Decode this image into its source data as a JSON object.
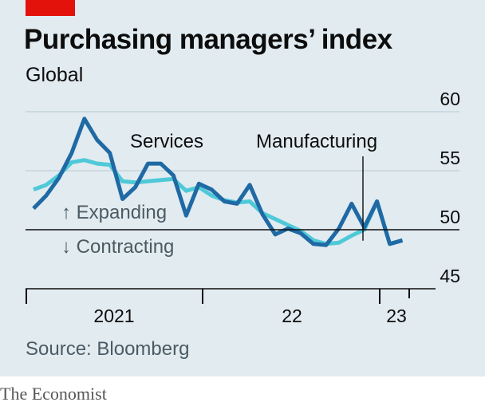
{
  "header": {
    "title": "Purchasing managers’ index",
    "subtitle": "Global"
  },
  "footer": {
    "source": "Source: Bloomberg",
    "brand": "The Economist"
  },
  "colors": {
    "accent": "#e3120b",
    "services": "#1f69a4",
    "manufacturing": "#4fc9d8",
    "background": "#e1ebf0"
  },
  "chart_data": {
    "type": "line",
    "title": "Purchasing managers’ index",
    "subtitle": "Global",
    "ylim": [
      45,
      60
    ],
    "yticks": [
      45,
      50,
      55,
      60
    ],
    "x_tick_labels": [
      "2021",
      "22",
      "23"
    ],
    "x_range": [
      "2020-09",
      "2023-02"
    ],
    "grid": true,
    "reference_line": 50,
    "annotations": {
      "expanding": "↑ Expanding",
      "contracting": "↓ Contracting"
    },
    "months": [
      "2020-09",
      "2020-10",
      "2020-11",
      "2020-12",
      "2021-01",
      "2021-02",
      "2021-03",
      "2021-04",
      "2021-05",
      "2021-06",
      "2021-07",
      "2021-08",
      "2021-09",
      "2021-10",
      "2021-11",
      "2021-12",
      "2022-01",
      "2022-02",
      "2022-03",
      "2022-04",
      "2022-05",
      "2022-06",
      "2022-07",
      "2022-08",
      "2022-09",
      "2022-10",
      "2022-11",
      "2022-12",
      "2023-01",
      "2023-02"
    ],
    "series": [
      {
        "name": "Services",
        "values": [
          51.8,
          52.9,
          54.4,
          56.5,
          59.4,
          57.6,
          56.5,
          52.6,
          53.6,
          55.6,
          55.6,
          54.6,
          51.2,
          53.9,
          53.4,
          52.4,
          52.2,
          53.8,
          51.3,
          49.6,
          50.1,
          49.7,
          48.8,
          48.7,
          50.1,
          52.2,
          50.2,
          52.4,
          48.8,
          49.1
        ]
      },
      {
        "name": "Manufacturing",
        "values": [
          53.4,
          53.8,
          54.6,
          55.7,
          55.9,
          55.6,
          55.5,
          54.1,
          54.0,
          54.1,
          54.2,
          54.3,
          53.3,
          53.6,
          52.9,
          52.5,
          52.3,
          52.4,
          51.4,
          50.9,
          50.4,
          49.9,
          49.1,
          48.8,
          48.9,
          49.5,
          50.0,
          52.4,
          48.8,
          49.1
        ]
      }
    ]
  }
}
